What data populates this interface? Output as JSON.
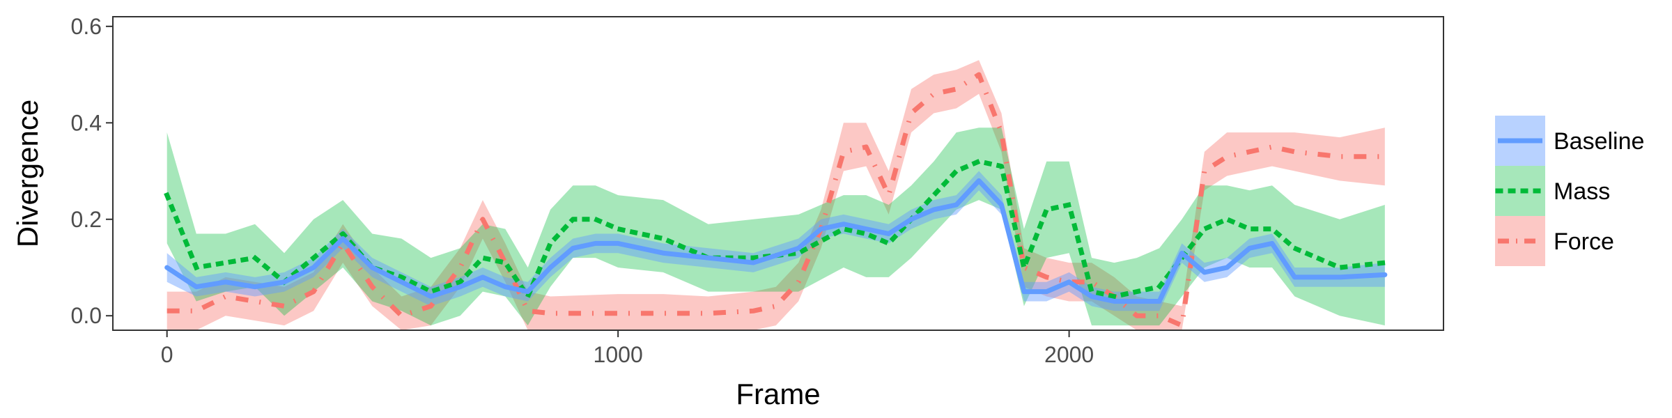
{
  "chart_data": {
    "type": "line",
    "title": "",
    "xlabel": "Frame",
    "ylabel": "Divergence",
    "xlim": [
      -120,
      2830
    ],
    "ylim": [
      -0.03,
      0.62
    ],
    "xticks": [
      0,
      1000,
      2000
    ],
    "xtick_labels": [
      "0",
      "1000",
      "2000"
    ],
    "yticks": [
      0.0,
      0.2,
      0.4,
      0.6
    ],
    "ytick_labels": [
      "0.0",
      "0.2",
      "0.4",
      "0.6"
    ],
    "grid": false,
    "legend_position": "right",
    "legend_title": "",
    "series": [
      {
        "name": "Force",
        "color": "#F8766D",
        "band_alpha": 0.4,
        "dash": "dotdash",
        "x": [
          0,
          65,
          130,
          195,
          260,
          325,
          390,
          455,
          520,
          585,
          650,
          700,
          750,
          800,
          850,
          1000,
          1100,
          1200,
          1300,
          1350,
          1400,
          1450,
          1500,
          1550,
          1600,
          1650,
          1700,
          1750,
          1800,
          1850,
          1900,
          1950,
          2000,
          2050,
          2100,
          2150,
          2200,
          2250,
          2300,
          2350,
          2400,
          2450,
          2500,
          2600,
          2700
        ],
        "y": [
          0.01,
          0.01,
          0.04,
          0.03,
          0.02,
          0.05,
          0.15,
          0.06,
          0.0,
          0.02,
          0.1,
          0.2,
          0.11,
          0.01,
          0.005,
          0.005,
          0.005,
          0.005,
          0.01,
          0.02,
          0.07,
          0.18,
          0.34,
          0.35,
          0.25,
          0.42,
          0.46,
          0.47,
          0.5,
          0.38,
          0.1,
          0.08,
          0.07,
          0.07,
          0.04,
          0.0,
          0.0,
          -0.02,
          0.3,
          0.33,
          0.34,
          0.35,
          0.34,
          0.33,
          0.33
        ],
        "lower": [
          -0.03,
          -0.03,
          0.0,
          -0.01,
          -0.02,
          0.01,
          0.11,
          0.02,
          -0.03,
          -0.02,
          0.06,
          0.16,
          0.07,
          -0.03,
          -0.03,
          -0.03,
          -0.03,
          -0.03,
          -0.03,
          -0.02,
          0.03,
          0.14,
          0.3,
          0.31,
          0.21,
          0.38,
          0.42,
          0.43,
          0.46,
          0.34,
          0.06,
          0.04,
          0.03,
          0.03,
          0.0,
          -0.03,
          -0.03,
          -0.03,
          0.26,
          0.29,
          0.3,
          0.31,
          0.3,
          0.28,
          0.27
        ],
        "upper": [
          0.05,
          0.05,
          0.08,
          0.07,
          0.06,
          0.09,
          0.19,
          0.1,
          0.04,
          0.06,
          0.14,
          0.24,
          0.15,
          0.05,
          0.04,
          0.045,
          0.045,
          0.04,
          0.05,
          0.06,
          0.11,
          0.22,
          0.4,
          0.4,
          0.3,
          0.47,
          0.5,
          0.51,
          0.53,
          0.42,
          0.14,
          0.12,
          0.11,
          0.11,
          0.08,
          0.04,
          0.03,
          0.02,
          0.34,
          0.38,
          0.38,
          0.38,
          0.38,
          0.37,
          0.39
        ]
      },
      {
        "name": "Mass",
        "color": "#00BA38",
        "band_alpha": 0.35,
        "dash": "dotted",
        "x": [
          0,
          65,
          130,
          195,
          260,
          325,
          390,
          455,
          520,
          585,
          650,
          700,
          750,
          800,
          850,
          900,
          950,
          1000,
          1100,
          1200,
          1300,
          1400,
          1500,
          1550,
          1600,
          1650,
          1700,
          1750,
          1800,
          1850,
          1900,
          1950,
          2000,
          2050,
          2100,
          2150,
          2200,
          2250,
          2300,
          2350,
          2400,
          2450,
          2500,
          2600,
          2700
        ],
        "y": [
          0.25,
          0.1,
          0.11,
          0.12,
          0.07,
          0.12,
          0.17,
          0.1,
          0.08,
          0.05,
          0.07,
          0.12,
          0.11,
          0.04,
          0.15,
          0.2,
          0.2,
          0.18,
          0.16,
          0.12,
          0.12,
          0.13,
          0.18,
          0.17,
          0.15,
          0.2,
          0.25,
          0.3,
          0.32,
          0.31,
          0.1,
          0.22,
          0.23,
          0.05,
          0.04,
          0.05,
          0.06,
          0.12,
          0.18,
          0.2,
          0.18,
          0.18,
          0.14,
          0.1,
          0.11
        ],
        "lower": [
          0.15,
          0.03,
          0.05,
          0.06,
          0.0,
          0.05,
          0.1,
          0.03,
          0.01,
          -0.02,
          0.0,
          0.05,
          0.04,
          -0.02,
          0.06,
          0.12,
          0.12,
          0.1,
          0.09,
          0.05,
          0.05,
          0.05,
          0.1,
          0.08,
          0.08,
          0.12,
          0.17,
          0.22,
          0.24,
          0.22,
          0.02,
          0.12,
          0.13,
          -0.02,
          -0.02,
          -0.02,
          -0.02,
          0.04,
          0.1,
          0.12,
          0.1,
          0.1,
          0.04,
          0.0,
          -0.02
        ],
        "upper": [
          0.38,
          0.17,
          0.17,
          0.19,
          0.13,
          0.2,
          0.24,
          0.17,
          0.16,
          0.12,
          0.14,
          0.19,
          0.18,
          0.1,
          0.22,
          0.27,
          0.27,
          0.25,
          0.24,
          0.19,
          0.2,
          0.21,
          0.25,
          0.25,
          0.23,
          0.27,
          0.32,
          0.38,
          0.39,
          0.39,
          0.18,
          0.32,
          0.32,
          0.12,
          0.11,
          0.12,
          0.14,
          0.2,
          0.27,
          0.27,
          0.26,
          0.27,
          0.23,
          0.2,
          0.23
        ]
      },
      {
        "name": "Baseline",
        "color": "#619CFF",
        "band_alpha": 0.45,
        "dash": "solid",
        "x": [
          0,
          65,
          130,
          195,
          260,
          325,
          390,
          455,
          520,
          585,
          650,
          700,
          750,
          800,
          850,
          900,
          950,
          1000,
          1100,
          1200,
          1300,
          1400,
          1450,
          1500,
          1550,
          1600,
          1650,
          1700,
          1750,
          1800,
          1850,
          1900,
          1950,
          2000,
          2050,
          2100,
          2150,
          2200,
          2250,
          2300,
          2350,
          2400,
          2450,
          2500,
          2600,
          2700
        ],
        "y": [
          0.1,
          0.06,
          0.07,
          0.06,
          0.07,
          0.1,
          0.16,
          0.1,
          0.07,
          0.04,
          0.06,
          0.08,
          0.06,
          0.05,
          0.1,
          0.14,
          0.15,
          0.15,
          0.13,
          0.12,
          0.11,
          0.14,
          0.18,
          0.19,
          0.18,
          0.17,
          0.2,
          0.22,
          0.23,
          0.28,
          0.23,
          0.05,
          0.05,
          0.07,
          0.04,
          0.03,
          0.03,
          0.03,
          0.13,
          0.09,
          0.1,
          0.14,
          0.15,
          0.08,
          0.08,
          0.085
        ],
        "lower": [
          0.07,
          0.04,
          0.05,
          0.04,
          0.05,
          0.08,
          0.14,
          0.08,
          0.05,
          0.02,
          0.04,
          0.06,
          0.04,
          0.03,
          0.08,
          0.12,
          0.13,
          0.13,
          0.11,
          0.1,
          0.09,
          0.12,
          0.16,
          0.17,
          0.16,
          0.15,
          0.18,
          0.2,
          0.21,
          0.26,
          0.21,
          0.03,
          0.03,
          0.05,
          0.02,
          0.01,
          0.01,
          0.01,
          0.11,
          0.07,
          0.08,
          0.12,
          0.13,
          0.06,
          0.06,
          0.06
        ],
        "upper": [
          0.13,
          0.08,
          0.09,
          0.08,
          0.09,
          0.12,
          0.18,
          0.12,
          0.09,
          0.06,
          0.08,
          0.1,
          0.08,
          0.07,
          0.12,
          0.16,
          0.17,
          0.17,
          0.15,
          0.14,
          0.13,
          0.16,
          0.2,
          0.21,
          0.2,
          0.19,
          0.22,
          0.24,
          0.25,
          0.3,
          0.25,
          0.07,
          0.07,
          0.09,
          0.06,
          0.05,
          0.05,
          0.05,
          0.15,
          0.11,
          0.12,
          0.16,
          0.17,
          0.1,
          0.1,
          0.11
        ]
      }
    ],
    "legend_order": [
      "Baseline",
      "Mass",
      "Force"
    ]
  }
}
